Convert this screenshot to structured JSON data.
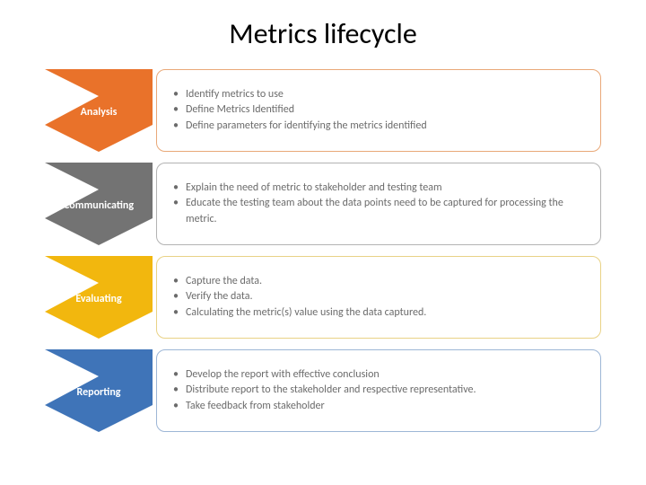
{
  "type": "infographic",
  "title": "Metrics lifecycle",
  "title_fontsize": 32,
  "background_color": "#ffffff",
  "text_color": "#6b6b6b",
  "label_text_color": "#ffffff",
  "bullet_fontsize": 12,
  "label_fontsize": 12,
  "stage_height": 92,
  "chevron_width": 120,
  "stages": [
    {
      "label": "Analysis",
      "color": "#e9722a",
      "border_color": "#e9a878",
      "bullets": [
        "Identify metrics to use",
        "Define Metrics Identified",
        "Define parameters for identifying the metrics identified"
      ]
    },
    {
      "label": "Communicating",
      "color": "#737373",
      "border_color": "#b3b3b3",
      "bullets": [
        "Explain the need of metric to stakeholder and testing team",
        "Educate the testing team about the data points need to be captured for processing the metric."
      ]
    },
    {
      "label": "Evaluating",
      "color": "#f2b70e",
      "border_color": "#e9d286",
      "bullets": [
        "Capture the data.",
        "Verify the data.",
        "Calculating the metric(s) value using the data captured."
      ]
    },
    {
      "label": "Reporting",
      "color": "#3f74b8",
      "border_color": "#9db6d6",
      "bullets": [
        "Develop the report with effective conclusion",
        "Distribute report to the stakeholder and respective representative.",
        "Take feedback from stakeholder"
      ]
    }
  ]
}
